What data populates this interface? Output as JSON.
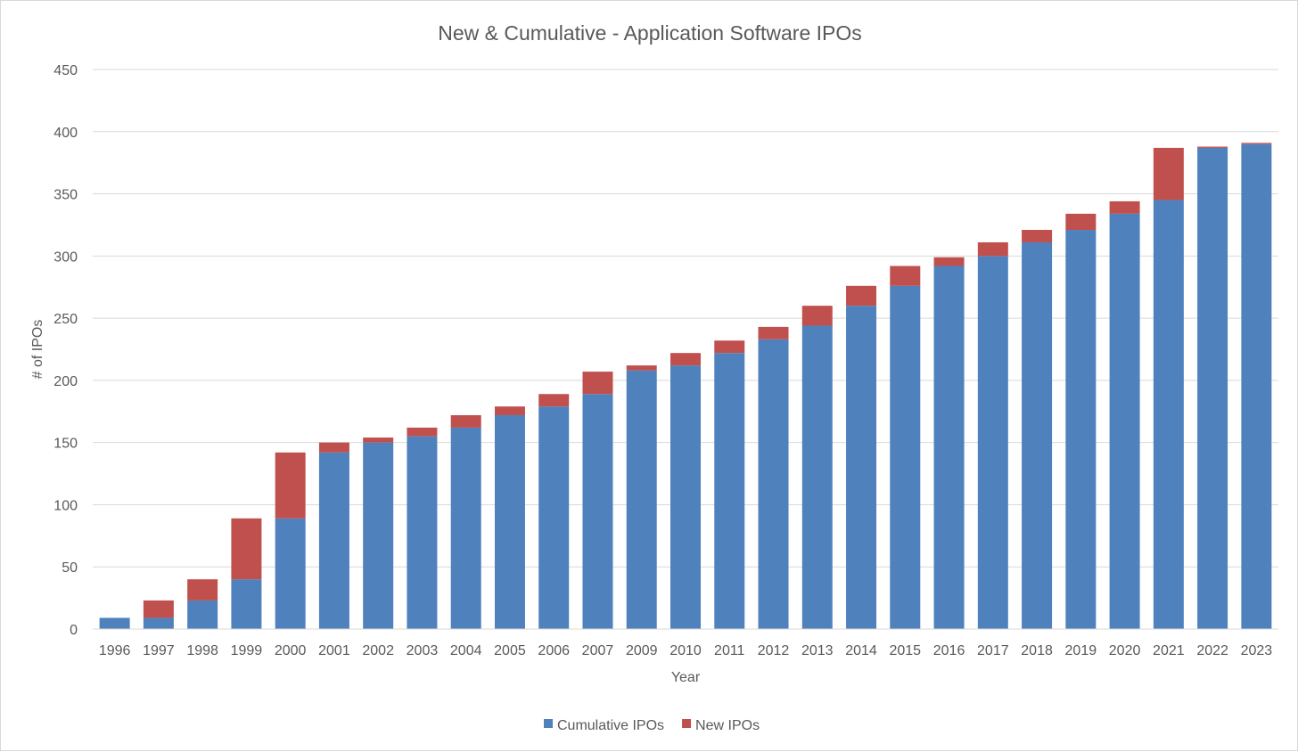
{
  "chart_data": {
    "type": "bar",
    "stacked": true,
    "title": "New & Cumulative - Application Software IPOs",
    "xlabel": "Year",
    "ylabel": "# of IPOs",
    "ylim": [
      0,
      450
    ],
    "yticks": [
      0,
      50,
      100,
      150,
      200,
      250,
      300,
      350,
      400,
      450
    ],
    "grid": true,
    "legend_position": "bottom",
    "categories": [
      "1996",
      "1997",
      "1998",
      "1999",
      "2000",
      "2001",
      "2002",
      "2003",
      "2004",
      "2005",
      "2006",
      "2007",
      "2009",
      "2010",
      "2011",
      "2012",
      "2013",
      "2014",
      "2015",
      "2016",
      "2017",
      "2018",
      "2019",
      "2020",
      "2021",
      "2022",
      "2023"
    ],
    "series": [
      {
        "name": "Cumulative IPOs",
        "color": "#4f81bd",
        "values": [
          9,
          9,
          23,
          40,
          89,
          142,
          150,
          155,
          162,
          172,
          179,
          189,
          208,
          212,
          222,
          233,
          244,
          260,
          276,
          292,
          300,
          311,
          321,
          334,
          345,
          387,
          390
        ]
      },
      {
        "name": "New IPOs",
        "color": "#c0504d",
        "values": [
          0,
          14,
          17,
          49,
          53,
          8,
          4,
          7,
          10,
          7,
          10,
          18,
          4,
          10,
          10,
          10,
          16,
          16,
          16,
          7,
          11,
          10,
          13,
          10,
          42,
          1,
          1
        ]
      }
    ]
  }
}
